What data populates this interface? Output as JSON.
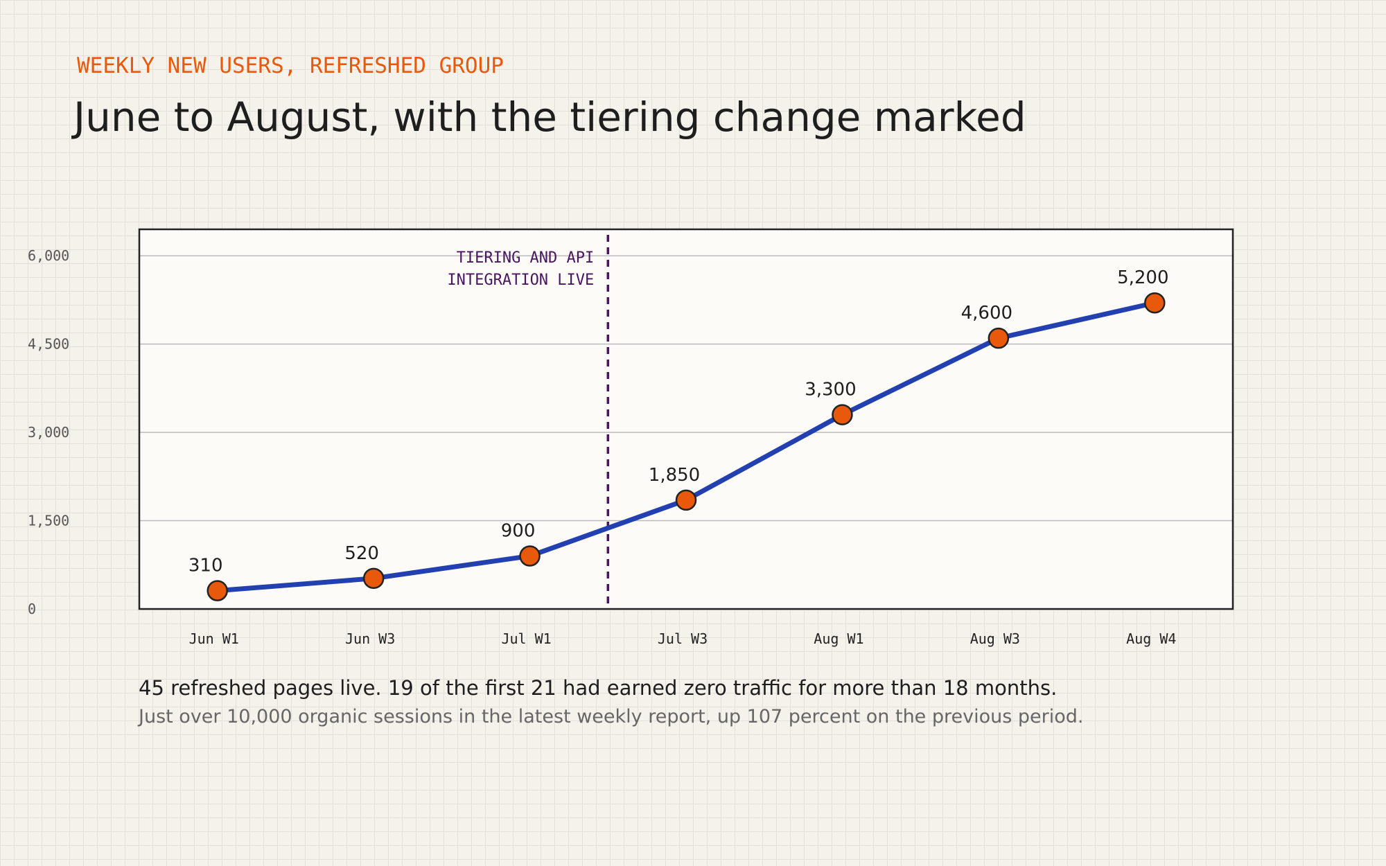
{
  "chart_data": {
    "type": "line",
    "kicker": "WEEKLY NEW USERS, REFRESHED GROUP",
    "title": "June to August, with the tiering change marked",
    "categories": [
      "Jun W1",
      "Jun W3",
      "Jul W1",
      "Jul W3",
      "Aug W1",
      "Aug W3",
      "Aug W4"
    ],
    "series": [
      {
        "name": "Weekly new users",
        "color": "#2340b0",
        "marker_color": "#e8590c",
        "values": [
          310,
          520,
          900,
          1850,
          3300,
          4600,
          5200
        ],
        "value_labels": [
          "310",
          "520",
          "900",
          "1,850",
          "3,300",
          "4,600",
          "5,200"
        ]
      }
    ],
    "ylim": [
      0,
      6450
    ],
    "yticks": [
      0,
      {
        "value": 1500,
        "label": "1,500"
      },
      {
        "value": 3000,
        "label": "3,000"
      },
      {
        "value": 4500,
        "label": "4,500"
      },
      {
        "value": 6000,
        "label": "6,000"
      }
    ],
    "grid": true,
    "annotation": {
      "lines": [
        "TIERING AND API",
        "INTEGRATION LIVE"
      ],
      "color": "#4a1560"
    },
    "caption": "45 refreshed pages live. 19 of the first 21 had earned zero traffic for more than 18 months.",
    "subcaption": "Just over 10,000 organic sessions in the latest weekly report, up 107 percent on the previous period."
  }
}
